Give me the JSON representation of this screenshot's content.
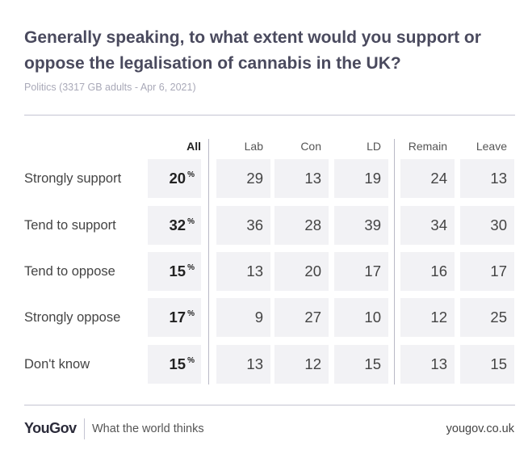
{
  "header": {
    "title": "Generally speaking, to what extent would you support or oppose the legalisation of cannabis in the UK?",
    "subtitle": "Politics (3317 GB adults - Apr 6, 2021)"
  },
  "footer": {
    "brand": "YouGov",
    "tagline": "What the world thinks",
    "site": "yougov.co.uk"
  },
  "chart_data": {
    "type": "table",
    "title": "Generally speaking, to what extent would you support or oppose the legalisation of cannabis in the UK?",
    "unit_symbol": "%",
    "columns": [
      "All",
      "Lab",
      "Con",
      "LD",
      "Remain",
      "Leave"
    ],
    "rows": [
      {
        "label": "Strongly support",
        "values": [
          "20",
          "29",
          "13",
          "19",
          "24",
          "13"
        ]
      },
      {
        "label": "Tend to support",
        "values": [
          "32",
          "36",
          "28",
          "39",
          "34",
          "30"
        ]
      },
      {
        "label": "Tend to oppose",
        "values": [
          "15",
          "13",
          "20",
          "17",
          "16",
          "17"
        ]
      },
      {
        "label": "Strongly oppose",
        "values": [
          "17",
          "9",
          "27",
          "10",
          "12",
          "25"
        ]
      },
      {
        "label": "Don't know",
        "values": [
          "15",
          "13",
          "12",
          "15",
          "13",
          "15"
        ]
      }
    ]
  }
}
